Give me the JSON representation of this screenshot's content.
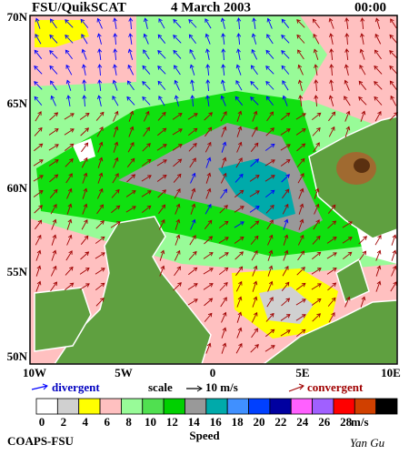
{
  "header": {
    "source": "FSU/QuikSCAT",
    "date": "4 March 2003",
    "time": "00:00"
  },
  "map": {
    "lat_labels": [
      "70N",
      "65N",
      "60N",
      "55N",
      "50N"
    ],
    "lon_labels": [
      "10W",
      "5W",
      "0",
      "5E",
      "10E"
    ]
  },
  "legend": {
    "divergent": "divergent",
    "scale": "scale",
    "scale_value": "10 m/s",
    "convergent": "convergent"
  },
  "colorbar": {
    "colors": [
      "#ffffff",
      "#d0d0d0",
      "#ffff00",
      "#ffc0c0",
      "#98fb98",
      "#50e050",
      "#00d000",
      "#999999",
      "#00aaaa",
      "#4090ff",
      "#0040ff",
      "#0000a0",
      "#ff60ff",
      "#a060ff",
      "#ff0000",
      "#d04000",
      "#000000"
    ],
    "labels": [
      0,
      2,
      4,
      6,
      8,
      10,
      12,
      14,
      16,
      18,
      20,
      22,
      24,
      26,
      28
    ],
    "unit": "m/s",
    "title": "Speed"
  },
  "footer": {
    "org": "COAPS-FSU",
    "author": "Yan Gu"
  }
}
